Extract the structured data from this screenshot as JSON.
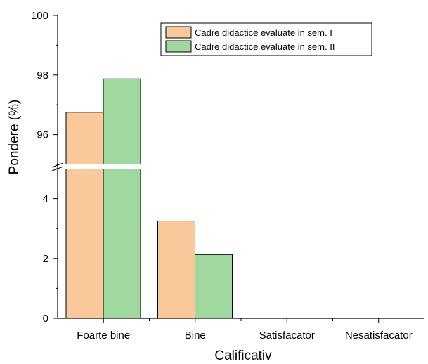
{
  "chart_data": {
    "type": "bar",
    "broken_axis": true,
    "xlabel": "Calificativ",
    "ylabel": "Pondere (%)",
    "categories": [
      "Foarte bine",
      "Bine",
      "Satisfacator",
      "Nesatisfacator"
    ],
    "series": [
      {
        "name": "Cadre didactice evaluate in sem. I",
        "color": "#f9c89b",
        "values": [
          96.75,
          3.25,
          0,
          0
        ]
      },
      {
        "name": "Cadre didactice evaluate in sem. II",
        "color": "#9fd99f",
        "values": [
          97.87,
          2.13,
          0,
          0
        ]
      }
    ],
    "y_segments": [
      {
        "range": [
          0,
          5
        ],
        "ticks": [
          "0",
          "2",
          "4"
        ]
      },
      {
        "range": [
          95,
          100
        ],
        "ticks": [
          "96",
          "98",
          "100"
        ]
      }
    ],
    "legend_position": "top-right",
    "grid": false
  }
}
